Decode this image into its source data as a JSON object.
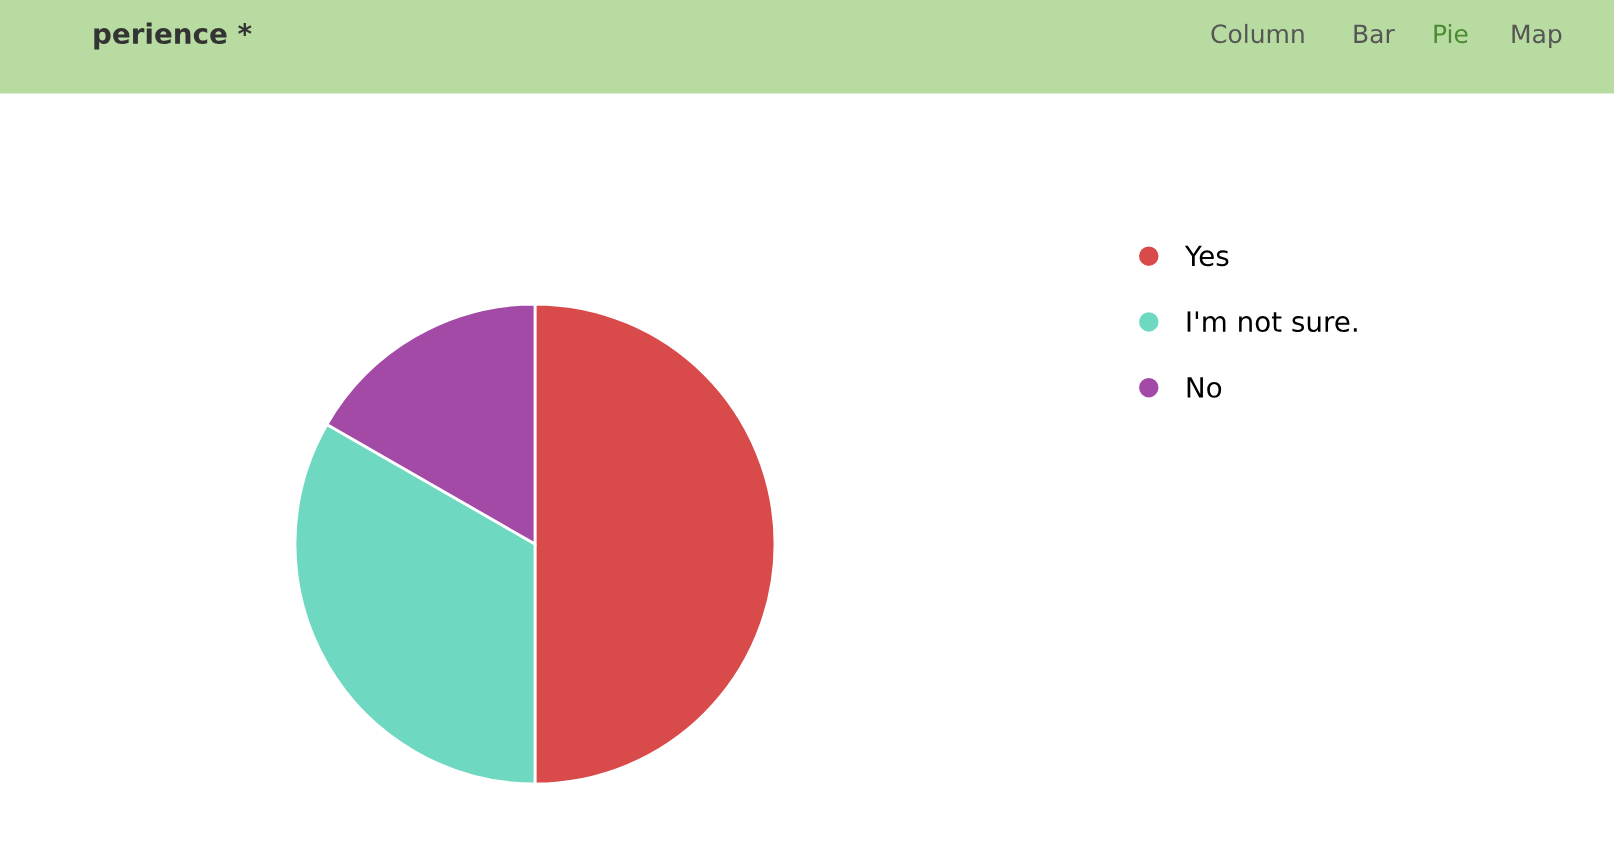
{
  "chart_data": {
    "type": "pie",
    "title": "perience *",
    "annotations": [
      "Column",
      "Bar",
      "Pie",
      "Map"
    ],
    "categories": [
      "Yes",
      "I'm not sure.",
      "No"
    ],
    "values": [
      50,
      33.3,
      16.7
    ],
    "colors": [
      "#d94a4a",
      "#6fd8c0",
      "#a24aa6"
    ],
    "legend": "right"
  }
}
